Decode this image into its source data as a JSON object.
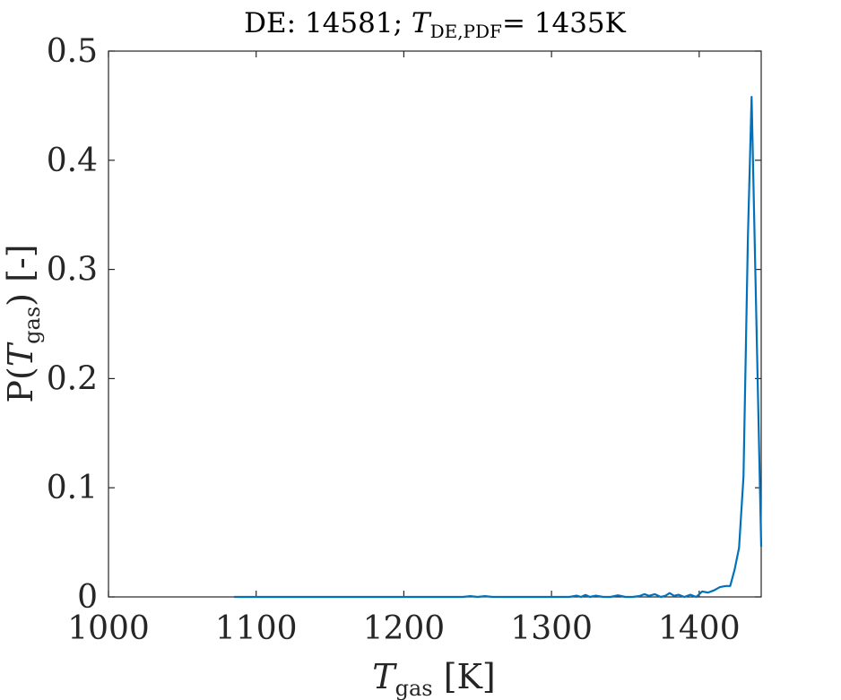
{
  "chart_data": {
    "type": "line",
    "title": {
      "prefix": "DE: 14581; ",
      "var": "T",
      "sub": "DE,PDF",
      "suffix": "= 1435K"
    },
    "xlabel": {
      "var": "T",
      "sub": "gas",
      "unit": " [K]"
    },
    "ylabel": {
      "pre": "P(",
      "var": "T",
      "sub": "gas",
      "post": ") [-]"
    },
    "xlim": [
      1000,
      1442
    ],
    "ylim": [
      0,
      0.5
    ],
    "xticks": [
      1000,
      1100,
      1200,
      1300,
      1400
    ],
    "yticks": [
      0,
      0.1,
      0.2,
      0.3,
      0.4,
      0.5
    ],
    "xtick_labels": [
      "1000",
      "1100",
      "1200",
      "1300",
      "1400"
    ],
    "ytick_labels": [
      "0",
      "0.1",
      "0.2",
      "0.3",
      "0.4",
      "0.5"
    ],
    "grid": false,
    "line_color": "#0072BD",
    "series": [
      {
        "x": [
          1085,
          1100,
          1150,
          1200,
          1240,
          1245,
          1250,
          1255,
          1260,
          1270,
          1300,
          1312,
          1317,
          1320,
          1323,
          1326,
          1330,
          1335,
          1340,
          1345,
          1350,
          1355,
          1360,
          1363,
          1366,
          1370,
          1374,
          1377,
          1380,
          1383,
          1386,
          1390,
          1394,
          1398,
          1402,
          1406,
          1410,
          1414,
          1418,
          1421,
          1424,
          1427,
          1430,
          1433,
          1435.5,
          1438,
          1442
        ],
        "y": [
          0,
          0,
          0,
          0,
          0,
          0.0008,
          0,
          0.0008,
          0,
          0,
          0,
          0,
          0.0012,
          0,
          0.0018,
          0,
          0.0012,
          0,
          0,
          0.0015,
          0,
          0,
          0.001,
          0.0025,
          0.001,
          0.0025,
          0,
          0.001,
          0.0035,
          0.001,
          0.002,
          0,
          0.002,
          0,
          0.005,
          0.004,
          0.006,
          0.009,
          0.01,
          0.01,
          0.025,
          0.045,
          0.11,
          0.33,
          0.458,
          0.3,
          0.046
        ]
      }
    ]
  }
}
